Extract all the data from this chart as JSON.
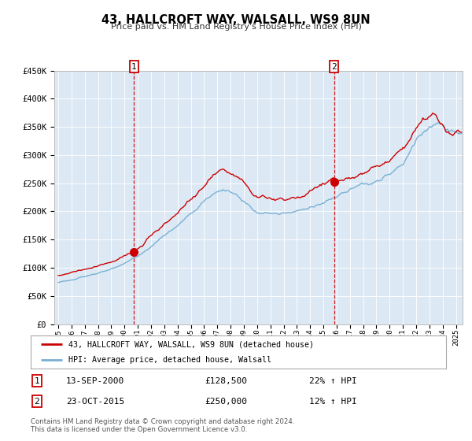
{
  "title": "43, HALLCROFT WAY, WALSALL, WS9 8UN",
  "subtitle": "Price paid vs. HM Land Registry's House Price Index (HPI)",
  "legend_line1": "43, HALLCROFT WAY, WALSALL, WS9 8UN (detached house)",
  "legend_line2": "HPI: Average price, detached house, Walsall",
  "table1_date": "13-SEP-2000",
  "table1_price": "£128,500",
  "table1_hpi": "22% ↑ HPI",
  "table2_date": "23-OCT-2015",
  "table2_price": "£250,000",
  "table2_hpi": "12% ↑ HPI",
  "footer": "Contains HM Land Registry data © Crown copyright and database right 2024.\nThis data is licensed under the Open Government Licence v3.0.",
  "ylim": [
    0,
    450000
  ],
  "xlim_start": 1994.7,
  "xlim_end": 2025.5,
  "background_color": "#dce9f5",
  "red_line_color": "#cc0000",
  "blue_line_color": "#7ab0d4",
  "annotation_box_color": "#cc0000",
  "dashed_line_color": "#cc0000",
  "sale1_x": 2000.71,
  "sale2_x": 2015.81,
  "sale1_price": 128500,
  "sale2_price": 250000
}
